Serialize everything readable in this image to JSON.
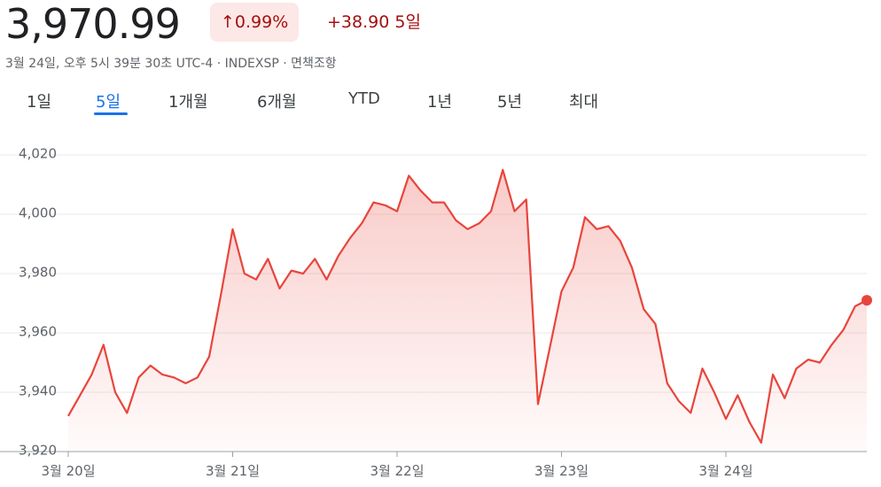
{
  "header": {
    "price": "3,970.99",
    "change_percent": "0.99%",
    "change_abs": "+38.90",
    "change_period": "5일",
    "subtitle": "3월 24일, 오후 5시 39분 30초 UTC-4 · INDEXSP · 면책조항"
  },
  "tabs": {
    "items": [
      "1일",
      "5일",
      "1개월",
      "6개월",
      "YTD",
      "1년",
      "5년",
      "최대"
    ],
    "selected": 1
  },
  "chart_data": {
    "type": "line",
    "color": "#e8453c",
    "grid": true,
    "series": [
      {
        "values": [
          3932,
          3939,
          3946,
          3956,
          3940,
          3933,
          3945,
          3949,
          3946,
          3945,
          3943,
          3945,
          3952,
          3973,
          3995,
          3980,
          3978,
          3985,
          3975,
          3981,
          3980,
          3985,
          3978,
          3986,
          3992,
          3997,
          4004,
          4003,
          4001,
          4013,
          4008,
          4004,
          4004,
          3998,
          3995,
          3997,
          4001,
          4015,
          4001,
          4005,
          3936,
          3955,
          3974,
          3982,
          3999,
          3995,
          3996,
          3991,
          3982,
          3968,
          3963,
          3943,
          3937,
          3933,
          3948,
          3940,
          3931,
          3939,
          3930,
          3923,
          3946,
          3938,
          3948,
          3951,
          3950,
          3956,
          3961,
          3969,
          3971
        ]
      }
    ],
    "xlim": [
      0,
      68
    ],
    "xticks": [
      {
        "value": 0,
        "label": "3월 20일"
      },
      {
        "value": 14,
        "label": "3월 21일"
      },
      {
        "value": 28,
        "label": "3월 22일"
      },
      {
        "value": 42,
        "label": "3월 23일"
      },
      {
        "value": 56,
        "label": "3월 24일"
      }
    ],
    "ylim": [
      3920,
      4020
    ],
    "yticks": [
      {
        "value": 3920,
        "label": "3,920"
      },
      {
        "value": 3940,
        "label": "3,940"
      },
      {
        "value": 3960,
        "label": "3,960"
      },
      {
        "value": 3980,
        "label": "3,980"
      },
      {
        "value": 4000,
        "label": "4,000"
      },
      {
        "value": 4020,
        "label": "4,020"
      }
    ]
  }
}
